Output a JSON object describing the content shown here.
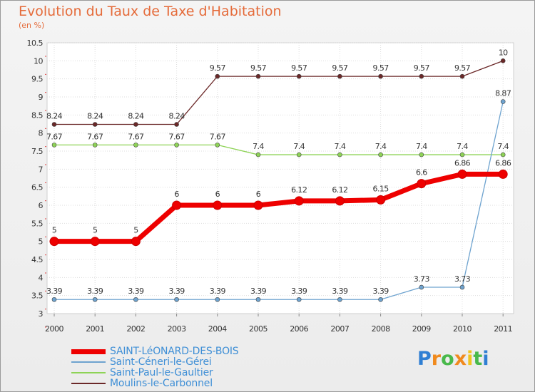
{
  "title": "Evolution du Taux de Taxe d'Habitation",
  "subtitle": "(en %)",
  "chart_data": {
    "type": "line",
    "title": "Evolution du Taux de Taxe d'Habitation",
    "ylabel": "(en %)",
    "xlabel": "",
    "x": [
      "2000",
      "2001",
      "2002",
      "2003",
      "2004",
      "2005",
      "2006",
      "2007",
      "2008",
      "2009",
      "2010",
      "2011"
    ],
    "ylim": [
      3,
      10.5
    ],
    "yticks": [
      "3",
      "3.5",
      "4",
      "4.5",
      "5",
      "5.5",
      "6",
      "6.5",
      "7",
      "7.5",
      "8",
      "8.5",
      "9",
      "9.5",
      "10",
      "10.5"
    ],
    "grid": true,
    "series": [
      {
        "name": "Moulins-le-Carbonnel",
        "color": "#6b2828",
        "values": [
          8.24,
          8.24,
          8.24,
          8.24,
          9.57,
          9.57,
          9.57,
          9.57,
          9.57,
          9.57,
          9.57,
          10
        ],
        "labels": [
          "8.24",
          "8.24",
          "8.24",
          "8.24",
          "9.57",
          "9.57",
          "9.57",
          "9.57",
          "9.57",
          "9.57",
          "9.57",
          "10"
        ]
      },
      {
        "name": "Saint-Paul-le-Gaultier",
        "color": "#8ed356",
        "values": [
          7.67,
          7.67,
          7.67,
          7.67,
          7.67,
          7.4,
          7.4,
          7.4,
          7.4,
          7.4,
          7.4,
          7.4
        ],
        "labels": [
          "7.67",
          "7.67",
          "7.67",
          "7.67",
          "7.67",
          "7.4",
          "7.4",
          "7.4",
          "7.4",
          "7.4",
          "7.4",
          "7.4"
        ]
      },
      {
        "name": "Saint-Céneri-le-Gérei",
        "color": "#6ea3cf",
        "values": [
          3.39,
          3.39,
          3.39,
          3.39,
          3.39,
          3.39,
          3.39,
          3.39,
          3.39,
          3.73,
          3.73,
          8.87
        ],
        "labels": [
          "3.39",
          "3.39",
          "3.39",
          "3.39",
          "3.39",
          "3.39",
          "3.39",
          "3.39",
          "3.39",
          "3.73",
          "3.73",
          "8.87"
        ]
      },
      {
        "name": "SAINT-LéONARD-DES-BOIS",
        "color": "#ee0000",
        "values": [
          5,
          5,
          5,
          6,
          6,
          6,
          6.12,
          6.12,
          6.15,
          6.6,
          6.86,
          6.86
        ],
        "labels": [
          "5",
          "5",
          "5",
          "6",
          "6",
          "6",
          "6.12",
          "6.12",
          "6.15",
          "6.6",
          "6.86",
          "6.86"
        ]
      }
    ]
  },
  "legend": [
    {
      "label": "SAINT-LéONARD-DES-BOIS",
      "color": "#ee0000"
    },
    {
      "label": "Saint-Céneri-le-Gérei",
      "color": "#6ea3cf"
    },
    {
      "label": "Saint-Paul-le-Gaultier",
      "color": "#8ed356"
    },
    {
      "label": "Moulins-le-Carbonnel",
      "color": "#6b2828"
    }
  ],
  "logo": {
    "text": "Proxiti",
    "letters": [
      {
        "ch": "P",
        "color": "#2f7fd3"
      },
      {
        "ch": "r",
        "color": "#f08a1e"
      },
      {
        "ch": "o",
        "color": "#49b94b"
      },
      {
        "ch": "x",
        "color": "#f08a1e"
      },
      {
        "ch": "i",
        "color": "#f0c51e"
      },
      {
        "ch": "t",
        "color": "#49b94b"
      },
      {
        "ch": "i",
        "color": "#2f7fd3"
      }
    ]
  }
}
